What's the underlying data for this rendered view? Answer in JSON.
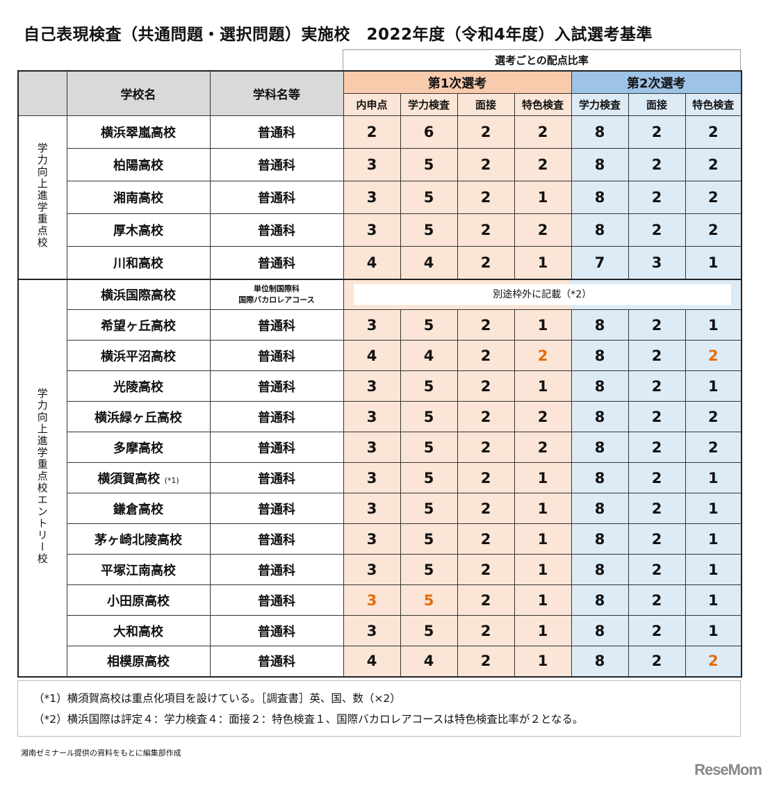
{
  "title": "自己表現検査（共通問題・選択問題）実施校　2022年度（令和4年度）入試選考基準",
  "header": {
    "ratio": "選考ごとの配点比率",
    "school": "学校名",
    "dept": "学科名等",
    "first": "第1次選考",
    "second": "第2次選考",
    "first_cols": [
      "内申点",
      "学力検査",
      "面接",
      "特色検査"
    ],
    "second_cols": [
      "学力検査",
      "面接",
      "特色検査"
    ]
  },
  "colors": {
    "highlight": "#e46c0a",
    "first_bg": "#fbe5d6",
    "second_bg": "#ddebf7"
  },
  "groups": [
    {
      "label": "学力向上進学重点校",
      "rows": [
        {
          "school": "横浜翠嵐高校",
          "dept": "普通科",
          "values": [
            2,
            6,
            2,
            2,
            8,
            2,
            2
          ],
          "highlight": []
        },
        {
          "school": "柏陽高校",
          "dept": "普通科",
          "values": [
            3,
            5,
            2,
            2,
            8,
            2,
            2
          ],
          "highlight": []
        },
        {
          "school": "湘南高校",
          "dept": "普通科",
          "values": [
            3,
            5,
            2,
            1,
            8,
            2,
            2
          ],
          "highlight": []
        },
        {
          "school": "厚木高校",
          "dept": "普通科",
          "values": [
            3,
            5,
            2,
            2,
            8,
            2,
            2
          ],
          "highlight": []
        },
        {
          "school": "川和高校",
          "dept": "普通科",
          "values": [
            4,
            4,
            2,
            1,
            7,
            3,
            1
          ],
          "highlight": []
        }
      ]
    },
    {
      "label": "学力向上進学重点校エントリー校",
      "rows": [
        {
          "school": "横浜国際高校",
          "dept": "単位制国際科",
          "dept2": "国際バカロレアコース",
          "separate": "別途枠外に記載（*2）"
        },
        {
          "school": "希望ヶ丘高校",
          "dept": "普通科",
          "values": [
            3,
            5,
            2,
            1,
            8,
            2,
            1
          ],
          "highlight": []
        },
        {
          "school": "横浜平沼高校",
          "dept": "普通科",
          "values": [
            4,
            4,
            2,
            2,
            8,
            2,
            2
          ],
          "highlight": [
            3,
            6
          ]
        },
        {
          "school": "光陵高校",
          "dept": "普通科",
          "values": [
            3,
            5,
            2,
            1,
            8,
            2,
            1
          ],
          "highlight": []
        },
        {
          "school": "横浜緑ヶ丘高校",
          "dept": "普通科",
          "values": [
            3,
            5,
            2,
            2,
            8,
            2,
            2
          ],
          "highlight": []
        },
        {
          "school": "多摩高校",
          "dept": "普通科",
          "values": [
            3,
            5,
            2,
            2,
            8,
            2,
            2
          ],
          "highlight": []
        },
        {
          "school": "横須賀高校",
          "note": "(*1)",
          "dept": "普通科",
          "values": [
            3,
            5,
            2,
            1,
            8,
            2,
            1
          ],
          "highlight": []
        },
        {
          "school": "鎌倉高校",
          "dept": "普通科",
          "values": [
            3,
            5,
            2,
            1,
            8,
            2,
            1
          ],
          "highlight": []
        },
        {
          "school": "茅ヶ崎北陵高校",
          "dept": "普通科",
          "values": [
            3,
            5,
            2,
            1,
            8,
            2,
            1
          ],
          "highlight": []
        },
        {
          "school": "平塚江南高校",
          "dept": "普通科",
          "values": [
            3,
            5,
            2,
            1,
            8,
            2,
            1
          ],
          "highlight": []
        },
        {
          "school": "小田原高校",
          "dept": "普通科",
          "values": [
            3,
            5,
            2,
            1,
            8,
            2,
            1
          ],
          "highlight": [
            0,
            1
          ]
        },
        {
          "school": "大和高校",
          "dept": "普通科",
          "values": [
            3,
            5,
            2,
            1,
            8,
            2,
            1
          ],
          "highlight": []
        },
        {
          "school": "相模原高校",
          "dept": "普通科",
          "values": [
            4,
            4,
            2,
            1,
            8,
            2,
            2
          ],
          "highlight": [
            6
          ]
        }
      ]
    }
  ],
  "notes": [
    "（*1）横須賀高校は重点化項目を設けている。［調査書］英、国、数（×2）",
    "（*2）横浜国際は評定４：学力検査４：面接２：特色検査１、国際バカロレアコースは特色検査比率が２となる。"
  ],
  "credit": "湘南ゼミナール提供の資料をもとに編集部作成",
  "logo": "ReseMom"
}
